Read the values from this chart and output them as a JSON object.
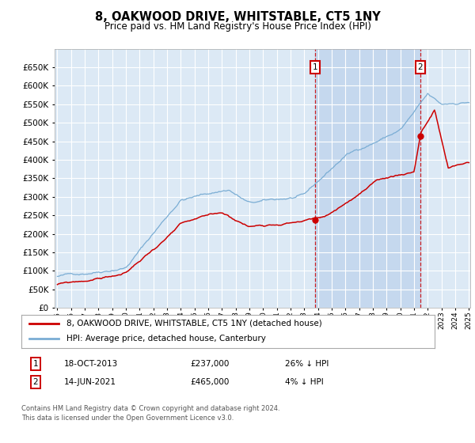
{
  "title": "8, OAKWOOD DRIVE, WHITSTABLE, CT5 1NY",
  "subtitle": "Price paid vs. HM Land Registry's House Price Index (HPI)",
  "red_label": "8, OAKWOOD DRIVE, WHITSTABLE, CT5 1NY (detached house)",
  "blue_label": "HPI: Average price, detached house, Canterbury",
  "annotation1": {
    "num": "1",
    "date": "18-OCT-2013",
    "price": "£237,000",
    "hpi": "26% ↓ HPI"
  },
  "annotation2": {
    "num": "2",
    "date": "14-JUN-2021",
    "price": "£465,000",
    "hpi": "4% ↓ HPI"
  },
  "footer": "Contains HM Land Registry data © Crown copyright and database right 2024.\nThis data is licensed under the Open Government Licence v3.0.",
  "ylim": [
    0,
    680000
  ],
  "yticks": [
    0,
    50000,
    100000,
    150000,
    200000,
    250000,
    300000,
    350000,
    400000,
    450000,
    500000,
    550000,
    600000,
    650000
  ],
  "start_year": 1995,
  "end_year": 2025,
  "sale1_year": 2013.8,
  "sale2_year": 2021.45,
  "sale1_price": 237000,
  "sale2_price": 465000,
  "bg_color": "#dce9f5",
  "grid_color": "#ffffff",
  "red_color": "#cc0000",
  "blue_color": "#7aadd4",
  "span_color": "#c5d8ee"
}
